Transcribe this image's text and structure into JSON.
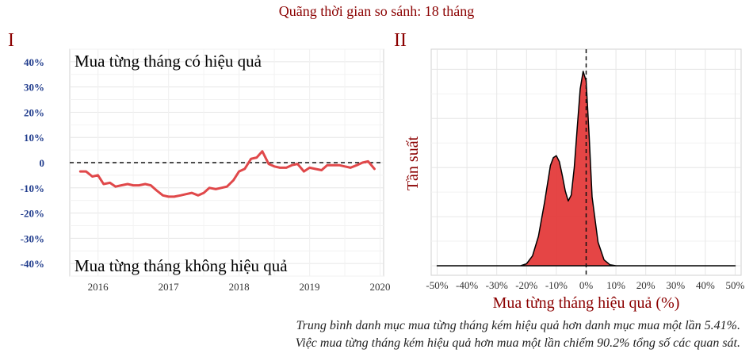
{
  "header": {
    "title": "Quãng thời gian so sánh: 18 tháng"
  },
  "panels": {
    "left_label": "I",
    "right_label": "II"
  },
  "footnote": {
    "line1": "Trung bình danh mục mua từng tháng kém hiệu quả hơn danh mục mua một lần 5.41%.",
    "line2": "Việc mua từng tháng kém hiệu quả hơn mua một lần chiếm 90.2% tổng số các quan sát."
  },
  "colors": {
    "title": "#8b0000",
    "line": "#e0484a",
    "fill": "#e43b3b",
    "grid": "#e6e6e6",
    "axis_text": "#1f3b8c"
  },
  "chart_data": [
    {
      "type": "line",
      "annotations": {
        "top": "Mua từng tháng có hiệu quả",
        "bottom": "Mua từng tháng không hiệu quả"
      },
      "yticks": [
        "40%",
        "30%",
        "20%",
        "10%",
        "0",
        "-10%",
        "-20%",
        "-30%",
        "-40%"
      ],
      "xticks": [
        "2016",
        "2017",
        "2018",
        "2019",
        "2020"
      ],
      "ylim": [
        -45,
        45
      ],
      "xlim": [
        2015.6,
        2020.05
      ],
      "reference_line": 0,
      "grid": true,
      "series": [
        {
          "x": [
            2015.75,
            2015.83,
            2015.92,
            2016.0,
            2016.08,
            2016.17,
            2016.25,
            2016.33,
            2016.42,
            2016.5,
            2016.58,
            2016.67,
            2016.75,
            2016.83,
            2016.92,
            2017.0,
            2017.08,
            2017.17,
            2017.25,
            2017.33,
            2017.42,
            2017.5,
            2017.58,
            2017.67,
            2017.75,
            2017.83,
            2017.92,
            2018.0,
            2018.08,
            2018.17,
            2018.25,
            2018.33,
            2018.42,
            2018.5,
            2018.58,
            2018.67,
            2018.75,
            2018.83,
            2018.92,
            2019.0,
            2019.08,
            2019.17,
            2019.25,
            2019.33,
            2019.42,
            2019.5,
            2019.58,
            2019.67,
            2019.75,
            2019.83,
            2019.92
          ],
          "y": [
            -3.5,
            -3.5,
            -5.5,
            -5.0,
            -8.5,
            -8.0,
            -9.5,
            -9.0,
            -8.5,
            -9.0,
            -9.0,
            -8.5,
            -9.0,
            -11.0,
            -13.0,
            -13.5,
            -13.5,
            -13.0,
            -12.5,
            -12.0,
            -13.0,
            -12.0,
            -10.0,
            -10.5,
            -10.0,
            -9.5,
            -7.0,
            -3.5,
            -2.5,
            1.5,
            2.0,
            4.5,
            -0.5,
            -1.5,
            -2.0,
            -2.0,
            -1.0,
            -0.5,
            -3.5,
            -2.0,
            -2.5,
            -3.0,
            -1.0,
            -1.0,
            -1.0,
            -1.5,
            -2.0,
            -1.0,
            0.0,
            0.5,
            -2.5
          ]
        }
      ]
    },
    {
      "type": "area",
      "xlabel": "Mua từng tháng hiệu quả (%)",
      "ylabel": "Tần suất",
      "xticks": [
        "-50%",
        "-40%",
        "-30%",
        "-20%",
        "-10%",
        "0%",
        "10%",
        "20%",
        "30%",
        "40%",
        "50%"
      ],
      "xlim": [
        -52,
        52
      ],
      "ylim": [
        0,
        1.05
      ],
      "reference_line": 0,
      "grid": true,
      "series": [
        {
          "x": [
            -50,
            -30,
            -22,
            -20,
            -18,
            -16,
            -14,
            -12,
            -11,
            -10,
            -9,
            -8,
            -7,
            -6,
            -5,
            -4,
            -3,
            -2,
            -1,
            0,
            1,
            2,
            4,
            6,
            8,
            10,
            14,
            20,
            50
          ],
          "y": [
            0,
            0,
            0,
            0.01,
            0.05,
            0.15,
            0.32,
            0.51,
            0.55,
            0.56,
            0.53,
            0.46,
            0.38,
            0.33,
            0.36,
            0.5,
            0.7,
            0.9,
            0.99,
            0.94,
            0.66,
            0.35,
            0.12,
            0.03,
            0.005,
            0,
            0,
            0,
            0
          ]
        }
      ]
    }
  ]
}
